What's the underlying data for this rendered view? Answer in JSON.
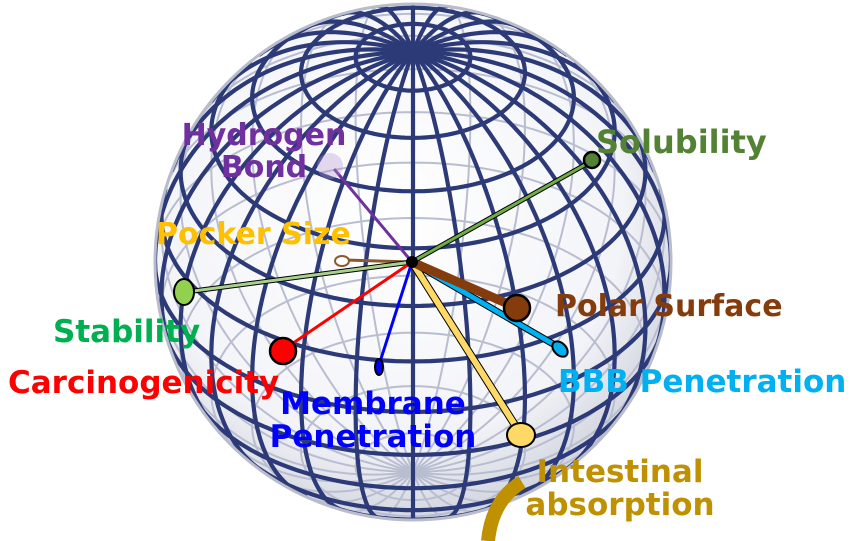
{
  "colors": {
    "grid": "#2d3a78",
    "hydrogen_bond": "#7030a0",
    "solubility": "#548235",
    "pocket_size": "#ffc000",
    "polar_surface": "#843c0c",
    "stability": "#00b050",
    "carcinogenicity": "#ff0000",
    "bbb_penetration": "#00b0f0",
    "membrane_penetration": "#0000ff",
    "intestinal_absorption": "#bf9000"
  },
  "labels": {
    "hydrogen_bond_1": "Hydrogen",
    "hydrogen_bond_2": "Bond",
    "solubility": "Solubility",
    "pocket_size": "Pocker Size",
    "polar_surface": "Polar Surface",
    "stability": "Stability",
    "carcinogenicity": "Carcinogenicity",
    "bbb_penetration": "BBB Penetration",
    "membrane_penetration_1": "Membrane",
    "membrane_penetration_2": "Penetration",
    "intestinal_absorption_1": "Intestinal",
    "intestinal_absorption_2": "absorption"
  }
}
